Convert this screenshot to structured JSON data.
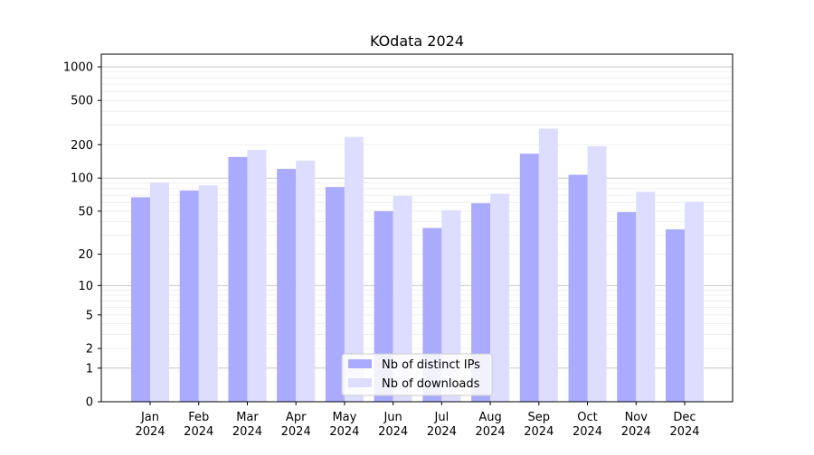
{
  "chart_data": {
    "type": "bar",
    "title": "KOdata 2024",
    "xlabel": "",
    "ylabel": "",
    "yscale": "symlog",
    "ylim": [
      0,
      1300
    ],
    "y_ticks": [
      0,
      1,
      2,
      5,
      10,
      20,
      50,
      100,
      200,
      500,
      1000
    ],
    "y_tick_labels": [
      "0",
      "1",
      "2",
      "5",
      "10",
      "20",
      "50",
      "100",
      "200",
      "500",
      "1000"
    ],
    "categories": [
      "Jan\n2024",
      "Feb\n2024",
      "Mar\n2024",
      "Apr\n2024",
      "May\n2024",
      "Jun\n2024",
      "Jul\n2024",
      "Aug\n2024",
      "Sep\n2024",
      "Oct\n2024",
      "Nov\n2024",
      "Dec\n2024"
    ],
    "series": [
      {
        "name": "Nb of distinct IPs",
        "color": "#aaaaff",
        "values": [
          67,
          77,
          155,
          121,
          83,
          50,
          35,
          59,
          166,
          107,
          49,
          34
        ]
      },
      {
        "name": "Nb of downloads",
        "color": "#ddddff",
        "values": [
          91,
          86,
          180,
          144,
          235,
          69,
          51,
          72,
          279,
          194,
          75,
          61
        ]
      }
    ],
    "grid": true,
    "legend_position": "bottom-center"
  }
}
